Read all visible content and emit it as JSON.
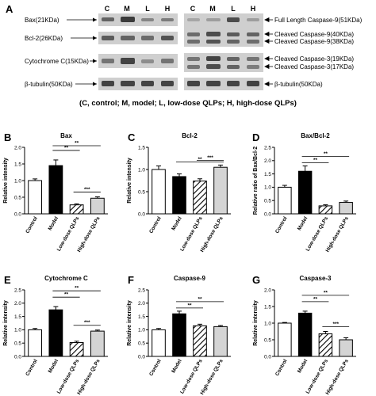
{
  "panel_a": {
    "letter": "A",
    "lanes": [
      "C",
      "M",
      "L",
      "H"
    ],
    "left_labels": [
      "Bax(21KDa)",
      "Bcl-2(26KDa)",
      "Cytochrome C(15KDa)",
      "β-tubulin(50KDa)"
    ],
    "right_labels": [
      "Full Length Caspase-9(51KDa)",
      "Cleaved Caspase-9(40KDa)",
      "Cleaved Caspase-9(38KDa)",
      "Cleaved Caspase-3(19KDa)",
      "Cleaved Caspase-3(17KDa)",
      "β-tubulin(50KDa)"
    ],
    "caption": "(C, control; M, model; L, low-dose QLPs; H, high-dose QLPs)"
  },
  "chart_data": [
    {
      "panel": "B",
      "type": "bar",
      "title": "Bax",
      "ylabel": "Relative intensity",
      "categories": [
        "Control",
        "Model",
        "Low-dose QLPs",
        "High-dose QLPs"
      ],
      "values": [
        1.0,
        1.45,
        0.27,
        0.47
      ],
      "errors": [
        0.05,
        0.17,
        0.03,
        0.04
      ],
      "ylim": [
        0,
        2.0
      ],
      "yticks": [
        "0.0",
        "0.5",
        "1.0",
        "1.5",
        "2.0"
      ],
      "significance": [
        {
          "from": "Model",
          "to": "High-dose QLPs",
          "label": "**"
        },
        {
          "from": "Model",
          "to": "Low-dose QLPs",
          "label": "**"
        },
        {
          "from": "Low-dose QLPs",
          "to": "High-dose QLPs",
          "label": "***"
        }
      ]
    },
    {
      "panel": "C",
      "type": "bar",
      "title": "Bcl-2",
      "ylabel": "Relative intensity",
      "categories": [
        "Control",
        "Model",
        "Low-dose QLPs",
        "High-dose QLPs"
      ],
      "values": [
        1.0,
        0.84,
        0.74,
        1.05
      ],
      "errors": [
        0.08,
        0.06,
        0.05,
        0.05
      ],
      "ylim": [
        0,
        1.5
      ],
      "yticks": [
        "0.0",
        "0.5",
        "1.0",
        "1.5"
      ],
      "significance": [
        {
          "from": "Low-dose QLPs",
          "to": "High-dose QLPs",
          "label": "***"
        },
        {
          "from": "Model",
          "to": "High-dose QLPs",
          "label": "**"
        }
      ]
    },
    {
      "panel": "D",
      "type": "bar",
      "title": "Bax/Bcl-2",
      "ylabel": "Relative ratio of Bax/Bcl-2",
      "categories": [
        "Control",
        "Model",
        "Low-dose QLPs",
        "High-dose QLPs"
      ],
      "values": [
        1.0,
        1.6,
        0.3,
        0.43
      ],
      "errors": [
        0.07,
        0.2,
        0.04,
        0.05
      ],
      "ylim": [
        0,
        2.5
      ],
      "yticks": [
        "0.0",
        "0.5",
        "1.0",
        "1.5",
        "2.0",
        "2.5"
      ],
      "significance": [
        {
          "from": "Model",
          "to": "High-dose QLPs",
          "label": "**"
        },
        {
          "from": "Model",
          "to": "Low-dose QLPs",
          "label": "**"
        }
      ]
    },
    {
      "panel": "E",
      "type": "bar",
      "title": "Cytochrome C",
      "ylabel": "Relative intensity",
      "categories": [
        "Control",
        "Model",
        "Low-dose QLPs",
        "High-dose QLPs"
      ],
      "values": [
        1.0,
        1.75,
        0.52,
        0.95
      ],
      "errors": [
        0.05,
        0.12,
        0.05,
        0.04
      ],
      "ylim": [
        0,
        2.5
      ],
      "yticks": [
        "0.0",
        "0.5",
        "1.0",
        "1.5",
        "2.0",
        "2.5"
      ],
      "significance": [
        {
          "from": "Model",
          "to": "High-dose QLPs",
          "label": "**"
        },
        {
          "from": "Model",
          "to": "Low-dose QLPs",
          "label": "**"
        },
        {
          "from": "Low-dose QLPs",
          "to": "High-dose QLPs",
          "label": "***"
        }
      ]
    },
    {
      "panel": "F",
      "type": "bar",
      "title": "Caspase-9",
      "ylabel": "Relative intensity",
      "categories": [
        "Control",
        "Model",
        "Low-dose QLPs",
        "High-dose QLPs"
      ],
      "values": [
        1.0,
        1.6,
        1.15,
        1.12
      ],
      "errors": [
        0.05,
        0.1,
        0.06,
        0.04
      ],
      "ylim": [
        0,
        2.5
      ],
      "yticks": [
        "0.0",
        "0.5",
        "1.0",
        "1.5",
        "2.0",
        "2.5"
      ],
      "significance": [
        {
          "from": "Model",
          "to": "High-dose QLPs",
          "label": "**"
        },
        {
          "from": "Model",
          "to": "Low-dose QLPs",
          "label": "**"
        }
      ]
    },
    {
      "panel": "G",
      "type": "bar",
      "title": "Caspase-3",
      "ylabel": "Relative intensity",
      "categories": [
        "Control",
        "Model",
        "Low-dose QLPs",
        "High-dose QLPs"
      ],
      "values": [
        1.0,
        1.3,
        0.68,
        0.5
      ],
      "errors": [
        0.02,
        0.06,
        0.07,
        0.06
      ],
      "ylim": [
        0,
        2.0
      ],
      "yticks": [
        "0.0",
        "0.5",
        "1.0",
        "1.5",
        "2.0"
      ],
      "significance": [
        {
          "from": "Model",
          "to": "High-dose QLPs",
          "label": "**"
        },
        {
          "from": "Model",
          "to": "Low-dose QLPs",
          "label": "**"
        },
        {
          "from": "Low-dose QLPs",
          "to": "High-dose QLPs",
          "label": "***"
        }
      ]
    }
  ]
}
